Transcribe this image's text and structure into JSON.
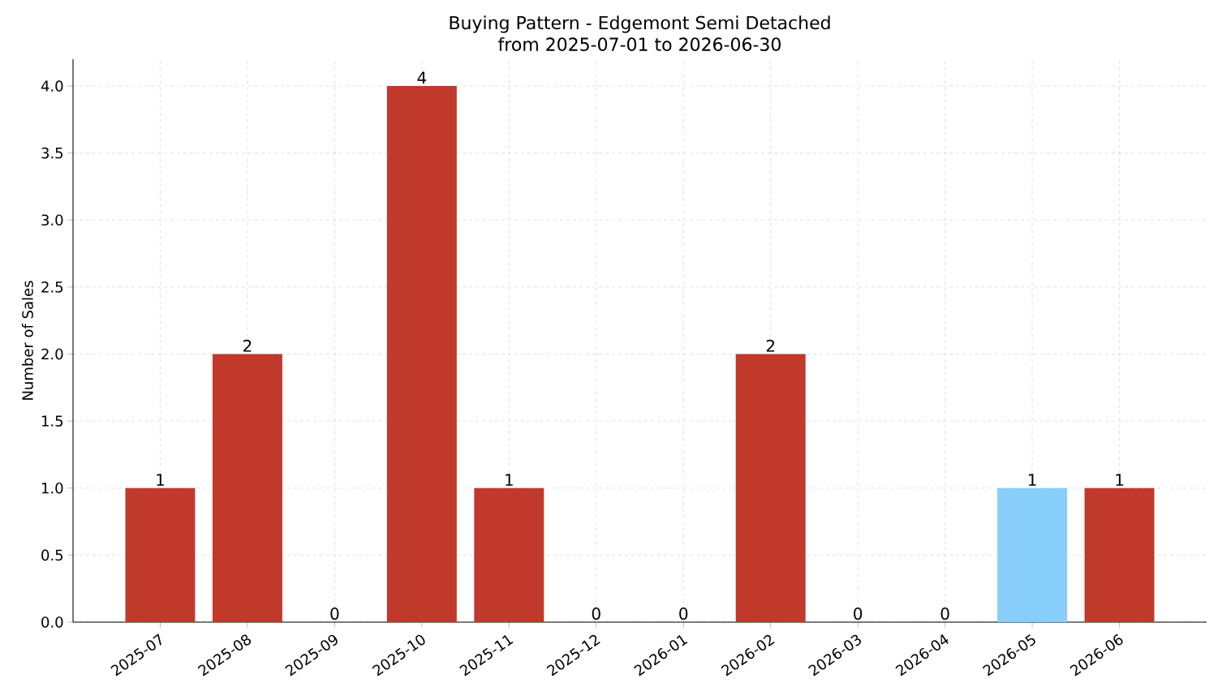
{
  "chart_data": {
    "type": "bar",
    "title": "Buying Pattern - Edgemont Semi Detached",
    "subtitle": "from 2025-07-01 to 2026-06-30",
    "ylabel": "Number of Sales",
    "categories": [
      "2025-07",
      "2025-08",
      "2025-09",
      "2025-10",
      "2025-11",
      "2025-12",
      "2026-01",
      "2026-02",
      "2026-03",
      "2026-04",
      "2026-05",
      "2026-06"
    ],
    "values": [
      1,
      2,
      0,
      4,
      1,
      0,
      0,
      2,
      0,
      0,
      1,
      1
    ],
    "colors": [
      "#c0392b",
      "#c0392b",
      "#c0392b",
      "#c0392b",
      "#c0392b",
      "#c0392b",
      "#c0392b",
      "#c0392b",
      "#c0392b",
      "#c0392b",
      "#87cefa",
      "#c0392b"
    ],
    "ylim": [
      0,
      4.2
    ],
    "yticks": [
      {
        "value": 0,
        "label": "0.0"
      },
      {
        "value": 0.5,
        "label": "0.5"
      },
      {
        "value": 1,
        "label": "1.0"
      },
      {
        "value": 1.5,
        "label": "1.5"
      },
      {
        "value": 2,
        "label": "2.0"
      },
      {
        "value": 2.5,
        "label": "2.5"
      },
      {
        "value": 3,
        "label": "3.0"
      },
      {
        "value": 3.5,
        "label": "3.5"
      },
      {
        "value": 4,
        "label": "4.0"
      }
    ],
    "grid": true,
    "data_labels": true
  }
}
